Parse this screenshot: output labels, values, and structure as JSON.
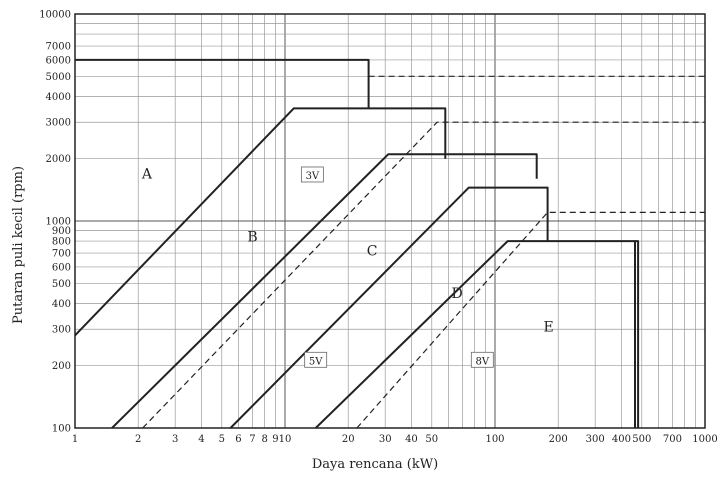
{
  "chart_data": {
    "type": "line",
    "title": "",
    "xlabel": "Daya rencana (kW)",
    "ylabel": "Putaran puli kecil (rpm)",
    "xscale": "log",
    "yscale": "log",
    "xlim": [
      1,
      1000
    ],
    "ylim": [
      100,
      10000
    ],
    "grid": true,
    "x_ticks": [
      {
        "v": 1,
        "t": "1"
      },
      {
        "v": 2,
        "t": "2"
      },
      {
        "v": 3,
        "t": "3"
      },
      {
        "v": 4,
        "t": "4"
      },
      {
        "v": 5,
        "t": "5"
      },
      {
        "v": 6,
        "t": "6"
      },
      {
        "v": 7,
        "t": "7"
      },
      {
        "v": 8,
        "t": "8"
      },
      {
        "v": 9,
        "t": "9"
      },
      {
        "v": 10,
        "t": "10"
      },
      {
        "v": 20,
        "t": "20"
      },
      {
        "v": 30,
        "t": "30"
      },
      {
        "v": 40,
        "t": "40"
      },
      {
        "v": 50,
        "t": "50"
      },
      {
        "v": 100,
        "t": "100"
      },
      {
        "v": 200,
        "t": "200"
      },
      {
        "v": 300,
        "t": "300"
      },
      {
        "v": 400,
        "t": "400"
      },
      {
        "v": 500,
        "t": "500"
      },
      {
        "v": 700,
        "t": "700"
      },
      {
        "v": 1000,
        "t": "1000"
      }
    ],
    "y_ticks": [
      {
        "v": 100,
        "t": "100"
      },
      {
        "v": 200,
        "t": "200"
      },
      {
        "v": 300,
        "t": "300"
      },
      {
        "v": 400,
        "t": "400"
      },
      {
        "v": 500,
        "t": "500"
      },
      {
        "v": 600,
        "t": "600"
      },
      {
        "v": 700,
        "t": "700"
      },
      {
        "v": 800,
        "t": "800"
      },
      {
        "v": 900,
        "t": "900"
      },
      {
        "v": 1000,
        "t": "1000"
      },
      {
        "v": 2000,
        "t": "2000"
      },
      {
        "v": 3000,
        "t": "3000"
      },
      {
        "v": 4000,
        "t": "4000"
      },
      {
        "v": 5000,
        "t": "5000"
      },
      {
        "v": 6000,
        "t": "6000"
      },
      {
        "v": 7000,
        "t": "7000"
      },
      {
        "v": 10000,
        "t": "10000"
      }
    ],
    "x_grid": [
      1,
      2,
      3,
      4,
      5,
      6,
      7,
      8,
      9,
      10,
      20,
      30,
      40,
      50,
      60,
      70,
      80,
      90,
      100,
      200,
      300,
      400,
      500,
      600,
      700,
      800,
      900,
      1000
    ],
    "y_grid": [
      100,
      200,
      300,
      400,
      500,
      600,
      700,
      800,
      900,
      1000,
      2000,
      3000,
      4000,
      5000,
      6000,
      7000,
      8000,
      9000,
      10000
    ],
    "series": [
      {
        "style": "solid",
        "points": [
          [
            1,
            280
          ],
          [
            11,
            3500
          ],
          [
            58,
            3500
          ],
          [
            58,
            2000
          ]
        ]
      },
      {
        "style": "solid",
        "points": [
          [
            1,
            6000
          ],
          [
            25,
            6000
          ],
          [
            25,
            3500
          ]
        ]
      },
      {
        "style": "solid",
        "points": [
          [
            1.5,
            100
          ],
          [
            31,
            2100
          ],
          [
            158,
            2100
          ],
          [
            158,
            1600
          ]
        ]
      },
      {
        "style": "solid",
        "points": [
          [
            5.5,
            100
          ],
          [
            75,
            1450
          ],
          [
            178,
            1450
          ],
          [
            178,
            800
          ]
        ]
      },
      {
        "style": "solid",
        "points": [
          [
            14,
            100
          ],
          [
            115,
            800
          ],
          [
            480,
            800
          ],
          [
            480,
            100
          ]
        ]
      },
      {
        "style": "solid",
        "points": [
          [
            464,
            100
          ],
          [
            464,
            800
          ]
        ]
      },
      {
        "style": "dashed",
        "points": [
          [
            2.1,
            100
          ],
          [
            53,
            3000
          ],
          [
            1000,
            3000
          ]
        ]
      },
      {
        "style": "dashed",
        "points": [
          [
            25,
            5000
          ],
          [
            1000,
            5000
          ]
        ]
      },
      {
        "style": "dashed",
        "points": [
          [
            22,
            100
          ],
          [
            178,
            1100
          ],
          [
            1000,
            1100
          ]
        ]
      }
    ],
    "annotations": [
      {
        "text": "A",
        "x": 2.2,
        "y": 1700,
        "kind": "region"
      },
      {
        "text": "B",
        "x": 7,
        "y": 840,
        "kind": "region"
      },
      {
        "text": "C",
        "x": 26,
        "y": 720,
        "kind": "region"
      },
      {
        "text": "D",
        "x": 66,
        "y": 450,
        "kind": "region"
      },
      {
        "text": "E",
        "x": 180,
        "y": 310,
        "kind": "region"
      },
      {
        "text": "3V",
        "x": 13.5,
        "y": 1650,
        "kind": "tag"
      },
      {
        "text": "5V",
        "x": 14,
        "y": 210,
        "kind": "tag"
      },
      {
        "text": "8V",
        "x": 87,
        "y": 210,
        "kind": "tag"
      }
    ]
  }
}
